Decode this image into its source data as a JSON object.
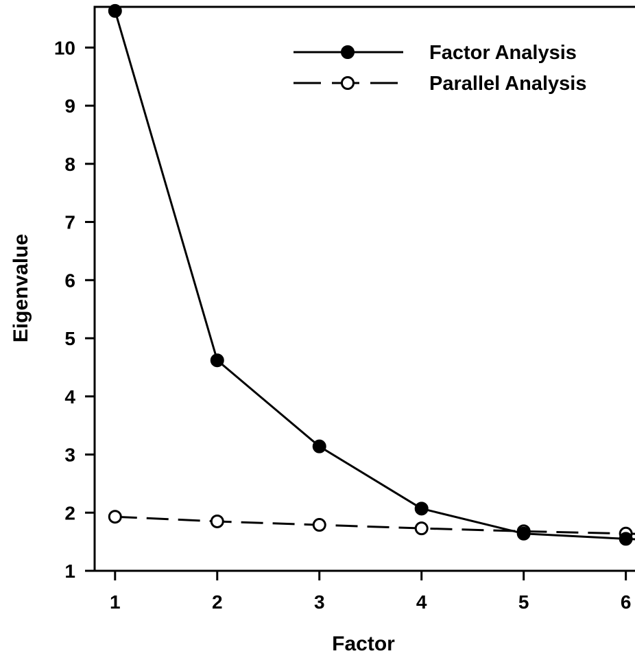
{
  "chart_data": {
    "type": "line",
    "xlabel": "Factor",
    "ylabel": "Eigenvalue",
    "x": [
      1,
      2,
      3,
      4,
      5,
      6
    ],
    "xlim": [
      0.8,
      6.15
    ],
    "ylim": [
      1,
      10.7
    ],
    "xticks": [
      "1",
      "2",
      "3",
      "4",
      "5",
      "6"
    ],
    "yticks": [
      "1",
      "2",
      "3",
      "4",
      "5",
      "6",
      "7",
      "8",
      "9",
      "10"
    ],
    "grid": false,
    "legend_position": "top-right",
    "series": [
      {
        "name": "Factor Analysis",
        "values": [
          10.63,
          4.62,
          3.14,
          2.07,
          1.64,
          1.55
        ],
        "line_style": "solid",
        "marker": "filled-circle",
        "color": "#000000"
      },
      {
        "name": "Parallel Analysis",
        "values": [
          1.93,
          1.85,
          1.79,
          1.73,
          1.68,
          1.64
        ],
        "line_style": "dashed",
        "marker": "open-circle",
        "color": "#000000"
      }
    ]
  }
}
